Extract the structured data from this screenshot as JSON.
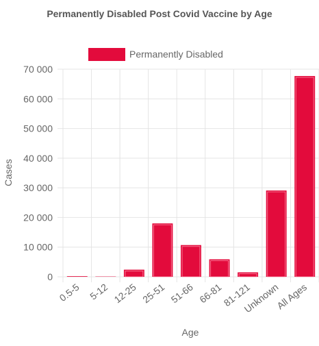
{
  "chart_data": {
    "type": "bar",
    "title": "Permanently Disabled Post Covid Vaccine by Age",
    "xlabel": "Age",
    "ylabel": "Cases",
    "categories": [
      "0.5-5",
      "5-12",
      "12-25",
      "25-51",
      "51-66",
      "66-81",
      "81-121",
      "Unknown",
      "All Ages"
    ],
    "series": [
      {
        "name": "Permanently Disabled",
        "values": [
          200,
          100,
          2400,
          18000,
          10700,
          5900,
          1500,
          29100,
          67700
        ]
      }
    ],
    "ylim": [
      0,
      70000
    ],
    "yticks": [
      0,
      10000,
      20000,
      30000,
      40000,
      50000,
      60000,
      70000
    ],
    "ytick_labels": [
      "0",
      "10 000",
      "20 000",
      "30 000",
      "40 000",
      "50 000",
      "60 000",
      "70 000"
    ],
    "grid": true,
    "legend_position": "top-center",
    "colors": {
      "bar_fill": "#e30b3c",
      "bar_inner_stroke": "#ff9db2"
    }
  }
}
